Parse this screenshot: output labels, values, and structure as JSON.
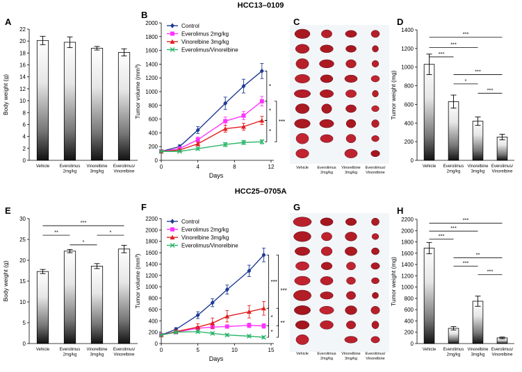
{
  "sections": {
    "top_title": "HCC13–0109",
    "bottom_title": "HCC25–0705A"
  },
  "photo_group_labels": [
    "Vehicle",
    "Everolimus\n2mg/kg",
    "Vinorelbine\n3mg/kg",
    "Everolimus/\nVinorelbine"
  ],
  "chart_data": [
    {
      "id": "A",
      "type": "bar",
      "panel_label": "A",
      "title": "",
      "xlabel": "",
      "ylabel": "Body weight (g)",
      "ylim": [
        0,
        22
      ],
      "yticks": [
        0,
        2,
        4,
        6,
        8,
        10,
        12,
        14,
        16,
        18,
        20,
        22
      ],
      "categories": [
        "Vehicle",
        "Everolimus\n2mg/kg",
        "Vinorelbine\n3mg/kg",
        "Everolimus/\nVinorelbine"
      ],
      "values": [
        20.1,
        19.8,
        18.8,
        18.1
      ],
      "errors": [
        0.7,
        0.9,
        0.3,
        0.6
      ],
      "significance": []
    },
    {
      "id": "B",
      "type": "line",
      "panel_label": "B",
      "title": "",
      "xlabel": "Days",
      "ylabel": "Tumor volume (mm³)",
      "xlim": [
        0,
        12
      ],
      "xticks": [
        0,
        4,
        8,
        12
      ],
      "ylim": [
        0,
        2000
      ],
      "yticks": [
        0,
        200,
        400,
        600,
        800,
        1000,
        1200,
        1400,
        1600,
        1800,
        2000
      ],
      "legend": "top-left",
      "series": [
        {
          "name": "Control",
          "color": "#1f3a93",
          "marker": "diamond",
          "x": [
            0,
            2,
            4,
            7,
            9,
            11
          ],
          "values": [
            130,
            200,
            440,
            830,
            1080,
            1300
          ],
          "errors": [
            10,
            25,
            50,
            90,
            100,
            110
          ]
        },
        {
          "name": "Everolimus 2mg/kg",
          "color": "#ff33ff",
          "marker": "square",
          "x": [
            0,
            2,
            4,
            7,
            9,
            11
          ],
          "values": [
            130,
            170,
            300,
            570,
            650,
            860
          ],
          "errors": [
            10,
            20,
            40,
            60,
            60,
            70
          ]
        },
        {
          "name": "Vinorelbine 3mg/kg",
          "color": "#e02020",
          "marker": "triangle",
          "x": [
            0,
            2,
            4,
            7,
            9,
            11
          ],
          "values": [
            130,
            150,
            240,
            460,
            490,
            580
          ],
          "errors": [
            10,
            15,
            30,
            50,
            50,
            60
          ]
        },
        {
          "name": "Everolimus/Vinorelbine",
          "color": "#2bb56a",
          "marker": "x",
          "x": [
            0,
            2,
            4,
            7,
            9,
            11
          ],
          "values": [
            130,
            130,
            170,
            230,
            260,
            270
          ],
          "errors": [
            10,
            10,
            20,
            30,
            30,
            30
          ]
        }
      ],
      "significance": [
        {
          "from": 1300,
          "to": 860,
          "label": "*",
          "level": 0
        },
        {
          "from": 860,
          "to": 580,
          "label": "*",
          "level": 0
        },
        {
          "from": 580,
          "to": 270,
          "label": "*",
          "level": 0
        },
        {
          "from": 860,
          "to": 270,
          "label": "***",
          "level": 1
        }
      ]
    },
    {
      "id": "D",
      "type": "bar",
      "panel_label": "D",
      "title": "",
      "xlabel": "",
      "ylabel": "Tumor weight (mg)",
      "ylim": [
        0,
        1400
      ],
      "yticks": [
        0,
        200,
        400,
        600,
        800,
        1000,
        1200,
        1400
      ],
      "categories": [
        "Vehicle",
        "Everolimus\n2mg/kg",
        "Vinorelbine\n3mg/kg",
        "Everolimus/\nVinorelbine"
      ],
      "values": [
        1030,
        630,
        420,
        250
      ],
      "errors": [
        110,
        70,
        45,
        30
      ],
      "significance": [
        {
          "a": 0,
          "b": 3,
          "label": "***",
          "y": 1320
        },
        {
          "a": 0,
          "b": 2,
          "label": "***",
          "y": 1210
        },
        {
          "a": 0,
          "b": 1,
          "label": "***",
          "y": 1110
        },
        {
          "a": 1,
          "b": 3,
          "label": "***",
          "y": 920
        },
        {
          "a": 1,
          "b": 2,
          "label": "*",
          "y": 820
        },
        {
          "a": 2,
          "b": 3,
          "label": "***",
          "y": 720
        }
      ]
    },
    {
      "id": "E",
      "type": "bar",
      "panel_label": "E",
      "title": "",
      "xlabel": "",
      "ylabel": "Body weight (g)",
      "ylim": [
        0,
        30
      ],
      "yticks": [
        0,
        5,
        10,
        15,
        20,
        25,
        30
      ],
      "categories": [
        "Vehicle",
        "Everolimus\n2mg/kg",
        "Vinorelbine\n3mg/kg",
        "Everolimus/\nVinorelbine"
      ],
      "values": [
        17.3,
        22.2,
        18.6,
        22.7
      ],
      "errors": [
        0.5,
        0.4,
        0.6,
        0.9
      ],
      "significance": [
        {
          "a": 0,
          "b": 3,
          "label": "***",
          "y": 28.3
        },
        {
          "a": 0,
          "b": 1,
          "label": "**",
          "y": 26.0
        },
        {
          "a": 2,
          "b": 3,
          "label": "*",
          "y": 26.0
        },
        {
          "a": 1,
          "b": 2,
          "label": "*",
          "y": 23.7
        }
      ]
    },
    {
      "id": "F",
      "type": "line",
      "panel_label": "F",
      "title": "",
      "xlabel": "Days",
      "ylabel": "Tumor volume (mm³)",
      "xlim": [
        0,
        15
      ],
      "xticks": [
        0,
        5,
        10,
        15
      ],
      "ylim": [
        0,
        2200
      ],
      "yticks": [
        0,
        200,
        400,
        600,
        800,
        1000,
        1200,
        1400,
        1600,
        1800,
        2000,
        2200
      ],
      "legend": "top-left",
      "series": [
        {
          "name": "Control",
          "color": "#1f3a93",
          "marker": "diamond",
          "x": [
            0,
            2,
            5,
            7,
            9,
            12,
            14
          ],
          "values": [
            150,
            250,
            500,
            720,
            950,
            1280,
            1560
          ],
          "errors": [
            20,
            30,
            60,
            70,
            80,
            100,
            120
          ]
        },
        {
          "name": "Everolimus 2mg/kg",
          "color": "#ff33ff",
          "marker": "square",
          "x": [
            0,
            2,
            5,
            7,
            9,
            12,
            14
          ],
          "values": [
            150,
            200,
            270,
            290,
            300,
            320,
            310
          ],
          "errors": [
            15,
            20,
            30,
            30,
            30,
            40,
            40
          ]
        },
        {
          "name": "Vinorelbine 3mg/kg",
          "color": "#e02020",
          "marker": "triangle",
          "x": [
            0,
            2,
            5,
            7,
            9,
            12,
            14
          ],
          "values": [
            150,
            210,
            290,
            360,
            480,
            560,
            620
          ],
          "errors": [
            20,
            30,
            60,
            90,
            100,
            110,
            120
          ]
        },
        {
          "name": "Everolimus/Vinorelbine",
          "color": "#2bb56a",
          "marker": "x",
          "x": [
            0,
            2,
            5,
            7,
            9,
            12,
            14
          ],
          "values": [
            150,
            200,
            210,
            180,
            150,
            130,
            110
          ],
          "errors": [
            15,
            20,
            20,
            20,
            20,
            20,
            20
          ]
        }
      ],
      "significance": [
        {
          "from": 1560,
          "to": 620,
          "label": "***",
          "level": 0
        },
        {
          "from": 620,
          "to": 310,
          "label": "*",
          "level": 0
        },
        {
          "from": 310,
          "to": 110,
          "label": "*",
          "level": 0
        },
        {
          "from": 1560,
          "to": 310,
          "label": "***",
          "level": 1
        },
        {
          "from": 620,
          "to": 110,
          "label": "**",
          "level": 1
        }
      ]
    },
    {
      "id": "H",
      "type": "bar",
      "panel_label": "H",
      "title": "",
      "xlabel": "",
      "ylabel": "Tumor weight (mg)",
      "ylim": [
        0,
        2200
      ],
      "yticks": [
        0,
        200,
        400,
        600,
        800,
        1000,
        1200,
        1400,
        1600,
        1800,
        2000,
        2200
      ],
      "categories": [
        "Vehicle",
        "Everolimus\n2mg/kg",
        "Vinorelbine\n3mg/kg",
        "Everolimus/\nVinorelbine"
      ],
      "values": [
        1690,
        270,
        750,
        100
      ],
      "errors": [
        100,
        30,
        90,
        15
      ],
      "significance": [
        {
          "a": 0,
          "b": 3,
          "label": "***",
          "y": 2130
        },
        {
          "a": 0,
          "b": 2,
          "label": "***",
          "y": 1990
        },
        {
          "a": 0,
          "b": 1,
          "label": "***",
          "y": 1850
        },
        {
          "a": 1,
          "b": 3,
          "label": "**",
          "y": 1520
        },
        {
          "a": 1,
          "b": 2,
          "label": "***",
          "y": 1370
        },
        {
          "a": 2,
          "b": 3,
          "label": "***",
          "y": 1220
        }
      ]
    },
    {
      "id": "C",
      "type": "image",
      "panel_label": "C",
      "caption": "Excised tumor photographs, HCC13–0109"
    },
    {
      "id": "G",
      "type": "image",
      "panel_label": "G",
      "caption": "Excised tumor photographs, HCC25–0705A"
    }
  ]
}
